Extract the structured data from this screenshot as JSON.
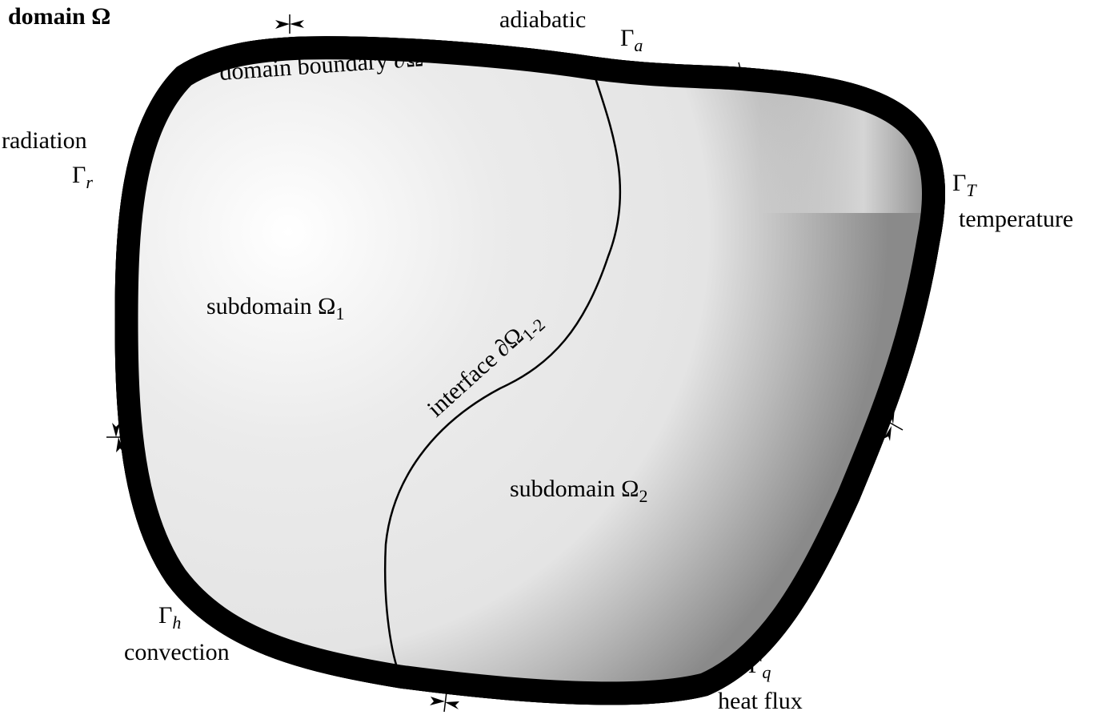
{
  "title": "domain Ω",
  "boundary_label": "domain boundary ∂Ω",
  "interface_label": "interface ∂Ω",
  "interface_sub": "1-2",
  "subdomain1": {
    "text": "subdomain Ω",
    "sub": "1"
  },
  "subdomain2": {
    "text": "subdomain Ω",
    "sub": "2"
  },
  "boundaries": {
    "adiabatic": {
      "name": "adiabatic",
      "symbol": "Γ",
      "sub": "a"
    },
    "temperature": {
      "name": "temperature",
      "symbol": "Γ",
      "sub": "T"
    },
    "heat_flux": {
      "name": "heat flux",
      "symbol": "Γ",
      "sub": "q"
    },
    "convection": {
      "name": "convection",
      "symbol": "Γ",
      "sub": "h"
    },
    "radiation": {
      "name": "radiation",
      "symbol": "Γ",
      "sub": "r"
    }
  },
  "colors": {
    "fill_light": "#ffffff",
    "fill_mid": "#e6e6e6",
    "fill_dark": "#8c8c8c",
    "line": "#000000"
  }
}
